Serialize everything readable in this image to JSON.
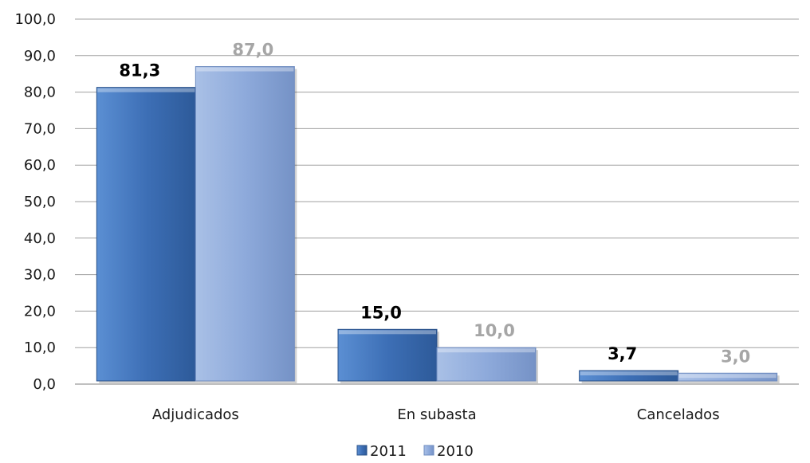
{
  "chart_data": {
    "type": "bar",
    "categories": [
      "Adjudicados",
      "En subasta",
      "Cancelados"
    ],
    "series": [
      {
        "name": "2011",
        "values": [
          81.3,
          15.0,
          3.7
        ],
        "value_labels": [
          "81,3",
          "15,0",
          "3,7"
        ],
        "color": "#3d6fb6",
        "label_color": "#000000"
      },
      {
        "name": "2010",
        "values": [
          87.0,
          10.0,
          3.0
        ],
        "value_labels": [
          "87,0",
          "10,0",
          "3,0"
        ],
        "color": "#8eaadb",
        "label_color": "#a6a6a6"
      }
    ],
    "ylim": [
      0,
      100
    ],
    "yticks": [
      "0,0",
      "10,0",
      "20,0",
      "30,0",
      "40,0",
      "50,0",
      "60,0",
      "70,0",
      "80,0",
      "90,0",
      "100,0"
    ],
    "ytick_values": [
      0,
      10,
      20,
      30,
      40,
      50,
      60,
      70,
      80,
      90,
      100
    ],
    "grid": true,
    "legend_position": "bottom",
    "title": "",
    "xlabel": "",
    "ylabel": ""
  }
}
